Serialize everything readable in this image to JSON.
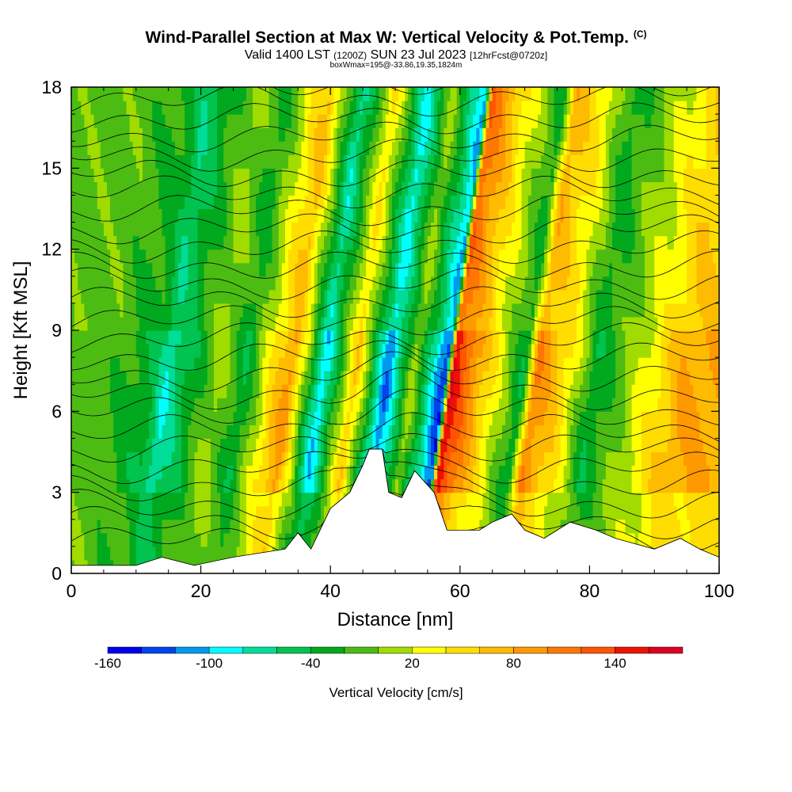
{
  "header": {
    "title": "Wind-Parallel Section at Max W: Vertical Velocity & Pot.Temp.",
    "copyright": "(C)",
    "valid_prefix": "Valid 1400 LST",
    "valid_utc": "(1200Z)",
    "valid_date": "SUN 23 Jul 2023",
    "forecast": "[12hrFcst@0720z]",
    "boxinfo": "boxWmax=195@-33.86,19.35,1824m"
  },
  "chart_data": {
    "type": "heatmap",
    "xlabel": "Distance [nm]",
    "ylabel": "Height [Kft MSL]",
    "xlim": [
      0,
      100
    ],
    "ylim": [
      0,
      18
    ],
    "xticks": [
      0,
      20,
      40,
      60,
      80,
      100
    ],
    "yticks": [
      0,
      3,
      6,
      9,
      12,
      15,
      18
    ],
    "colorbar": {
      "label": "Vertical Velocity [cm/s]",
      "tick_labels": [
        "-160",
        "-100",
        "-40",
        "20",
        "80",
        "140"
      ],
      "tick_values": [
        -160,
        -100,
        -40,
        20,
        80,
        140
      ],
      "bounds": [
        -160,
        -140,
        -120,
        -100,
        -80,
        -60,
        -40,
        -20,
        0,
        20,
        40,
        60,
        80,
        100,
        120,
        140,
        160,
        180
      ],
      "colors": [
        "#0000ee",
        "#0044ee",
        "#0099ee",
        "#00ffff",
        "#00dd99",
        "#00c350",
        "#00a91e",
        "#4cbc12",
        "#a0dc00",
        "#ffff00",
        "#ffdd00",
        "#ffbb00",
        "#ff9900",
        "#ff7700",
        "#ff5500",
        "#ee1100",
        "#dd0022"
      ]
    },
    "w_field_samples": [
      {
        "x": 5,
        "w": -10
      },
      {
        "x": 12,
        "w": -40
      },
      {
        "x": 14,
        "w": -80
      },
      {
        "x": 22,
        "w": 10
      },
      {
        "x": 26,
        "w": -40
      },
      {
        "x": 31,
        "w": 60
      },
      {
        "x": 33,
        "w": 90
      },
      {
        "x": 38,
        "w": -100
      },
      {
        "x": 43,
        "w": 60
      },
      {
        "x": 48,
        "w": -120
      },
      {
        "x": 52,
        "w": 10
      },
      {
        "x": 57,
        "w": -140
      },
      {
        "x": 58,
        "w": 160
      },
      {
        "x": 63,
        "w": 60
      },
      {
        "x": 69,
        "w": -40
      },
      {
        "x": 71,
        "w": 100
      },
      {
        "x": 76,
        "w": 40
      },
      {
        "x": 80,
        "w": -40
      },
      {
        "x": 86,
        "w": 10
      },
      {
        "x": 94,
        "w": 80
      }
    ],
    "terrain_kft": [
      {
        "x": 0,
        "h": 0.3
      },
      {
        "x": 10,
        "h": 0.3
      },
      {
        "x": 14,
        "h": 0.6
      },
      {
        "x": 19,
        "h": 0.3
      },
      {
        "x": 25,
        "h": 0.6
      },
      {
        "x": 33,
        "h": 0.9
      },
      {
        "x": 35,
        "h": 1.5
      },
      {
        "x": 37,
        "h": 0.9
      },
      {
        "x": 40,
        "h": 2.4
      },
      {
        "x": 43,
        "h": 3.0
      },
      {
        "x": 45,
        "h": 4.0
      },
      {
        "x": 46,
        "h": 4.6
      },
      {
        "x": 48,
        "h": 4.6
      },
      {
        "x": 49,
        "h": 3.0
      },
      {
        "x": 51,
        "h": 2.8
      },
      {
        "x": 53,
        "h": 3.8
      },
      {
        "x": 56,
        "h": 3.0
      },
      {
        "x": 58,
        "h": 1.6
      },
      {
        "x": 63,
        "h": 1.6
      },
      {
        "x": 65,
        "h": 1.9
      },
      {
        "x": 68,
        "h": 2.2
      },
      {
        "x": 70,
        "h": 1.6
      },
      {
        "x": 73,
        "h": 1.3
      },
      {
        "x": 77,
        "h": 1.9
      },
      {
        "x": 81,
        "h": 1.6
      },
      {
        "x": 84,
        "h": 1.3
      },
      {
        "x": 90,
        "h": 0.9
      },
      {
        "x": 94,
        "h": 1.3
      },
      {
        "x": 97,
        "h": 0.9
      },
      {
        "x": 100,
        "h": 0.6
      }
    ]
  }
}
